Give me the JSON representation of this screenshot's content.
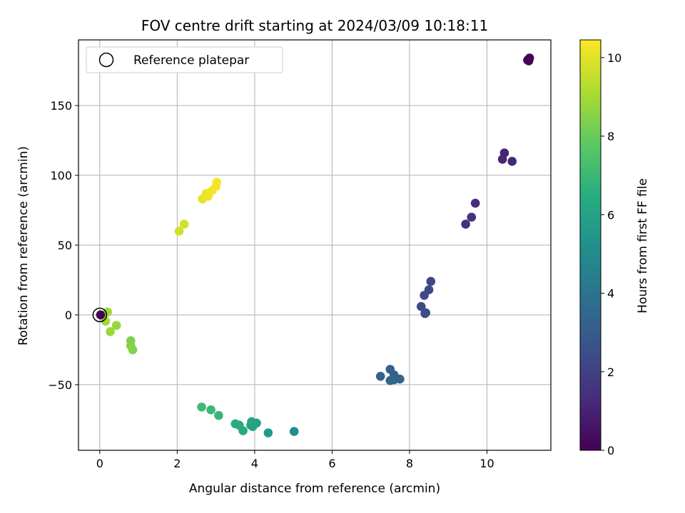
{
  "chart_data": {
    "type": "scatter",
    "title": "FOV centre drift starting at 2024/03/09 10:18:11",
    "xlabel": "Angular distance from reference (arcmin)",
    "ylabel": "Rotation from reference (arcmin)",
    "xlim": [
      -0.55,
      11.65
    ],
    "ylim": [
      -97,
      197
    ],
    "xticks": [
      0,
      2,
      4,
      6,
      8,
      10
    ],
    "yticks": [
      -50,
      0,
      50,
      100,
      150
    ],
    "grid": true,
    "legend": {
      "position": "upper-left",
      "entries": [
        "Reference platepar"
      ]
    },
    "reference_point": {
      "x": 0,
      "y": 0
    },
    "colorbar": {
      "label": "Hours from first FF file",
      "range": [
        0,
        10.45
      ],
      "ticks": [
        0,
        2,
        4,
        6,
        8,
        10
      ],
      "colormap": "viridis"
    },
    "points": [
      {
        "x": 11.05,
        "y": 182.5,
        "h": 0.0
      },
      {
        "x": 11.1,
        "y": 184.0,
        "h": 0.05
      },
      {
        "x": 11.08,
        "y": 182.0,
        "h": 0.1
      },
      {
        "x": 10.45,
        "y": 116.0,
        "h": 1.05
      },
      {
        "x": 10.4,
        "y": 111.5,
        "h": 1.1
      },
      {
        "x": 10.65,
        "y": 110.0,
        "h": 1.15
      },
      {
        "x": 9.7,
        "y": 80.0,
        "h": 1.35
      },
      {
        "x": 9.6,
        "y": 70.0,
        "h": 1.45
      },
      {
        "x": 9.45,
        "y": 65.0,
        "h": 1.5
      },
      {
        "x": 8.55,
        "y": 24.0,
        "h": 2.2
      },
      {
        "x": 8.5,
        "y": 18.0,
        "h": 2.25
      },
      {
        "x": 8.38,
        "y": 14.0,
        "h": 2.3
      },
      {
        "x": 8.3,
        "y": 6.0,
        "h": 2.35
      },
      {
        "x": 8.4,
        "y": 1.0,
        "h": 2.4
      },
      {
        "x": 8.42,
        "y": 1.5,
        "h": 2.45
      },
      {
        "x": 7.5,
        "y": -39.0,
        "h": 3.2
      },
      {
        "x": 7.25,
        "y": -44.0,
        "h": 3.25
      },
      {
        "x": 7.6,
        "y": -43.0,
        "h": 3.3
      },
      {
        "x": 7.75,
        "y": -46.0,
        "h": 3.35
      },
      {
        "x": 7.5,
        "y": -47.0,
        "h": 3.4
      },
      {
        "x": 7.6,
        "y": -46.5,
        "h": 3.45
      },
      {
        "x": 5.02,
        "y": -83.5,
        "h": 5.0
      },
      {
        "x": 4.35,
        "y": -84.5,
        "h": 5.6
      },
      {
        "x": 4.05,
        "y": -77.5,
        "h": 5.9
      },
      {
        "x": 3.95,
        "y": -80.0,
        "h": 6.0
      },
      {
        "x": 3.9,
        "y": -79.0,
        "h": 6.05
      },
      {
        "x": 3.92,
        "y": -76.5,
        "h": 6.1
      },
      {
        "x": 3.7,
        "y": -83.0,
        "h": 6.3
      },
      {
        "x": 3.6,
        "y": -79.0,
        "h": 6.4
      },
      {
        "x": 3.5,
        "y": -78.0,
        "h": 6.45
      },
      {
        "x": 3.07,
        "y": -72.0,
        "h": 6.9
      },
      {
        "x": 2.87,
        "y": -68.0,
        "h": 7.0
      },
      {
        "x": 2.63,
        "y": -66.0,
        "h": 7.1
      },
      {
        "x": 0.8,
        "y": -18.5,
        "h": 8.35
      },
      {
        "x": 0.8,
        "y": -22.0,
        "h": 8.4
      },
      {
        "x": 0.85,
        "y": -25.0,
        "h": 8.45
      },
      {
        "x": 0.43,
        "y": -7.5,
        "h": 8.8
      },
      {
        "x": 0.27,
        "y": -12.0,
        "h": 8.85
      },
      {
        "x": 0.2,
        "y": 2.0,
        "h": 8.9
      },
      {
        "x": 0.15,
        "y": -4.5,
        "h": 8.95
      },
      {
        "x": 0.08,
        "y": -1.0,
        "h": 9.0
      },
      {
        "x": 0.02,
        "y": 0.0,
        "h": 0.0
      },
      {
        "x": 2.05,
        "y": 60.0,
        "h": 9.7
      },
      {
        "x": 2.18,
        "y": 65.0,
        "h": 9.75
      },
      {
        "x": 2.65,
        "y": 83.0,
        "h": 10.1
      },
      {
        "x": 2.75,
        "y": 87.0,
        "h": 10.15
      },
      {
        "x": 2.8,
        "y": 85.0,
        "h": 10.2
      },
      {
        "x": 2.9,
        "y": 89.0,
        "h": 10.25
      },
      {
        "x": 3.0,
        "y": 92.0,
        "h": 10.3
      },
      {
        "x": 3.02,
        "y": 95.0,
        "h": 10.35
      }
    ]
  }
}
